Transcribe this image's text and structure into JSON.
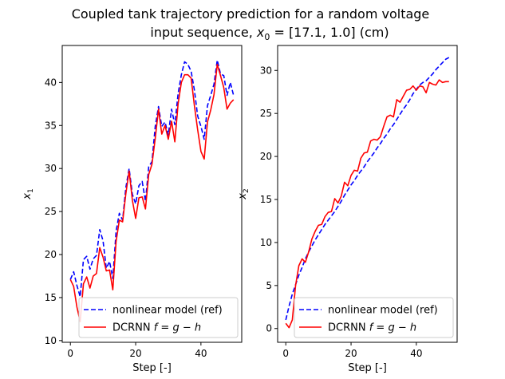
{
  "figure": {
    "title_line1": "Coupled tank trajectory prediction for a random voltage",
    "title_line2_prefix": "input sequence, ",
    "title_line2_math": "x",
    "title_line2_sub": "0",
    "title_line2_suffix": " = [17.1, 1.0] (cm)"
  },
  "chart_data": [
    {
      "type": "line",
      "xlabel": "Step [-]",
      "ylabel": "x",
      "ylabel_sub": "1",
      "xlim": [
        -2.5,
        52.5
      ],
      "ylim": [
        9.8,
        44.3
      ],
      "xticks": [
        0,
        20,
        40
      ],
      "yticks": [
        10,
        15,
        20,
        25,
        30,
        35,
        40
      ],
      "legend_position": "lower right",
      "series": [
        {
          "name": "nonlinear model (ref)",
          "color": "#0000ff",
          "dash": "dashed",
          "x": [
            0,
            1,
            2,
            3,
            4,
            5,
            6,
            7,
            8,
            9,
            10,
            11,
            12,
            13,
            14,
            15,
            16,
            17,
            18,
            19,
            20,
            21,
            22,
            23,
            24,
            25,
            26,
            27,
            28,
            29,
            30,
            31,
            32,
            33,
            34,
            35,
            36,
            37,
            38,
            39,
            40,
            41,
            42,
            43,
            44,
            45,
            46,
            47,
            48,
            49,
            50
          ],
          "y": [
            17.1,
            18.0,
            16.4,
            15.1,
            19.4,
            19.8,
            18.3,
            19.5,
            19.9,
            22.9,
            21.6,
            18.4,
            19.2,
            17.2,
            22.7,
            24.8,
            24.0,
            27.8,
            30.0,
            27.0,
            25.9,
            28.0,
            28.5,
            26.2,
            30.2,
            30.8,
            34.9,
            37.2,
            34.9,
            35.4,
            33.9,
            36.9,
            35.1,
            38.7,
            40.9,
            42.4,
            42.1,
            41.3,
            39.1,
            36.1,
            34.9,
            33.4,
            37.3,
            38.5,
            39.8,
            42.6,
            41.0,
            40.8,
            38.5,
            40.0,
            38.5
          ]
        },
        {
          "name": "DCRNN",
          "name_math": "f = g − h",
          "color": "#ff0000",
          "dash": "solid",
          "x": [
            0,
            1,
            2,
            3,
            4,
            5,
            6,
            7,
            8,
            9,
            10,
            11,
            12,
            13,
            14,
            15,
            16,
            17,
            18,
            19,
            20,
            21,
            22,
            23,
            24,
            25,
            26,
            27,
            28,
            29,
            30,
            31,
            32,
            33,
            34,
            35,
            36,
            37,
            38,
            39,
            40,
            41,
            42,
            43,
            44,
            45,
            46,
            47,
            48,
            49,
            50
          ],
          "y": [
            17.1,
            16.3,
            13.9,
            12.2,
            16.6,
            17.4,
            16.1,
            17.5,
            17.8,
            20.8,
            19.7,
            18.1,
            18.2,
            15.9,
            21.5,
            24.0,
            23.8,
            27.1,
            29.7,
            26.3,
            24.2,
            26.6,
            26.7,
            25.3,
            29.3,
            30.5,
            33.5,
            36.9,
            34.0,
            35.0,
            33.4,
            35.5,
            33.1,
            37.5,
            40.0,
            40.9,
            40.9,
            40.5,
            37.3,
            34.5,
            32.0,
            31.1,
            35.4,
            36.8,
            38.6,
            42.1,
            40.8,
            39.4,
            36.9,
            37.6,
            38.0
          ]
        }
      ]
    },
    {
      "type": "line",
      "xlabel": "Step [-]",
      "ylabel": "x",
      "ylabel_sub": "2",
      "xlim": [
        -2.5,
        52.5
      ],
      "ylim": [
        -1.6,
        32.9
      ],
      "xticks": [
        0,
        20,
        40
      ],
      "yticks": [
        0,
        5,
        10,
        15,
        20,
        25,
        30
      ],
      "legend_position": "lower right",
      "series": [
        {
          "name": "nonlinear model (ref)",
          "color": "#0000ff",
          "dash": "dashed",
          "x": [
            0,
            1,
            2,
            3,
            4,
            5,
            6,
            7,
            8,
            9,
            10,
            11,
            12,
            13,
            14,
            15,
            16,
            17,
            18,
            19,
            20,
            21,
            22,
            23,
            24,
            25,
            26,
            27,
            28,
            29,
            30,
            31,
            32,
            33,
            34,
            35,
            36,
            37,
            38,
            39,
            40,
            41,
            42,
            43,
            44,
            45,
            46,
            47,
            48,
            49,
            50
          ],
          "y": [
            1.0,
            2.6,
            4.0,
            5.1,
            6.2,
            7.1,
            8.1,
            8.9,
            9.6,
            10.3,
            10.9,
            11.5,
            12.1,
            12.6,
            13.1,
            13.6,
            14.2,
            14.8,
            15.5,
            16.1,
            16.7,
            17.2,
            17.8,
            18.3,
            18.8,
            19.4,
            19.9,
            20.4,
            21.0,
            21.5,
            22.1,
            22.6,
            23.2,
            23.7,
            24.3,
            24.9,
            25.5,
            26.0,
            26.6,
            27.3,
            27.8,
            28.3,
            28.6,
            28.8,
            29.2,
            29.6,
            30.1,
            30.5,
            30.9,
            31.3,
            31.5
          ]
        },
        {
          "name": "DCRNN",
          "name_math": "f = g − h",
          "color": "#ff0000",
          "dash": "solid",
          "x": [
            0,
            1,
            2,
            3,
            4,
            5,
            6,
            7,
            8,
            9,
            10,
            11,
            12,
            13,
            14,
            15,
            16,
            17,
            18,
            19,
            20,
            21,
            22,
            23,
            24,
            25,
            26,
            27,
            28,
            29,
            30,
            31,
            32,
            33,
            34,
            35,
            36,
            37,
            38,
            39,
            40,
            41,
            42,
            43,
            44,
            45,
            46,
            47,
            48,
            49,
            50
          ],
          "y": [
            0.6,
            0.1,
            1.0,
            5.0,
            7.3,
            8.1,
            7.7,
            8.9,
            10.4,
            11.3,
            12.0,
            12.1,
            13.0,
            13.5,
            13.6,
            15.1,
            14.6,
            15.4,
            17.0,
            16.6,
            17.8,
            18.4,
            18.3,
            19.8,
            20.4,
            20.5,
            21.8,
            22.0,
            21.9,
            22.3,
            23.5,
            24.6,
            24.8,
            24.6,
            26.6,
            26.3,
            27.0,
            27.7,
            27.8,
            28.2,
            27.7,
            28.2,
            28.1,
            27.4,
            28.6,
            28.4,
            28.3,
            28.9,
            28.6,
            28.7,
            28.7
          ]
        }
      ]
    }
  ]
}
